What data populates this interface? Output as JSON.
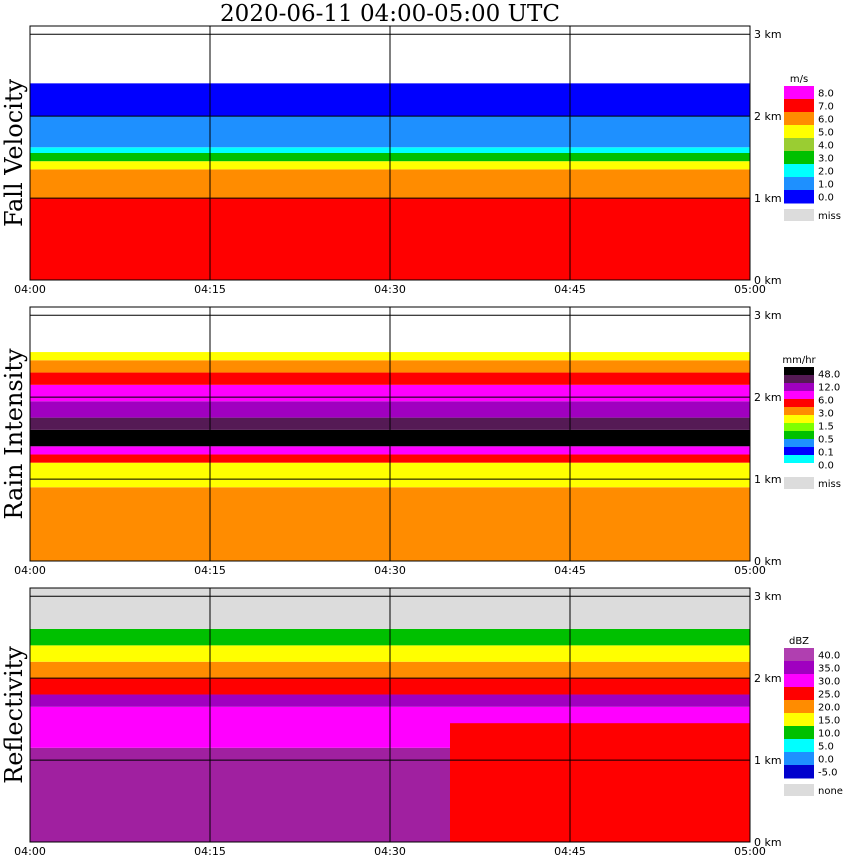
{
  "title": "2020-06-11   04:00-05:00 UTC",
  "chart_data": [
    {
      "type": "heatmap",
      "ylabel": "Fall Velocity",
      "x_ticks": [
        "04:00",
        "04:15",
        "04:30",
        "04:45",
        "05:00"
      ],
      "y_ticks": [
        "0 km",
        "1 km",
        "2 km",
        "3 km"
      ],
      "ylim": [
        0,
        3.1
      ],
      "colorbar": {
        "unit": "m/s",
        "labels": [
          "8.0",
          "7.0",
          "6.0",
          "5.0",
          "4.0",
          "3.0",
          "2.0",
          "1.0",
          "0.0"
        ],
        "colors": [
          "#ff00ff",
          "#ff0000",
          "#ff8c00",
          "#ffff00",
          "#9acd32",
          "#00c000",
          "#00ffff",
          "#1e90ff",
          "#0000ff"
        ],
        "missing_label": "miss",
        "missing_color": "#dcdcdc"
      },
      "bands": [
        {
          "from": 0.0,
          "to": 1.0,
          "color": "#ff0000"
        },
        {
          "from": 1.0,
          "to": 1.35,
          "color": "#ff8c00"
        },
        {
          "from": 1.35,
          "to": 1.45,
          "color": "#ffff00"
        },
        {
          "from": 1.45,
          "to": 1.55,
          "color": "#00c000"
        },
        {
          "from": 1.55,
          "to": 1.62,
          "color": "#00ffff"
        },
        {
          "from": 1.62,
          "to": 2.0,
          "color": "#1e90ff"
        },
        {
          "from": 2.0,
          "to": 2.4,
          "color": "#0000ff"
        }
      ]
    },
    {
      "type": "heatmap",
      "ylabel": "Rain Intensity",
      "x_ticks": [
        "04:00",
        "04:15",
        "04:30",
        "04:45",
        "05:00"
      ],
      "y_ticks": [
        "0 km",
        "1 km",
        "2 km",
        "3 km"
      ],
      "ylim": [
        0,
        3.1
      ],
      "colorbar": {
        "unit": "mm/hr",
        "labels": [
          "48.0",
          "12.0",
          "6.0",
          "3.0",
          "1.5",
          "0.5",
          "0.1",
          "0.0"
        ],
        "colors": [
          "#000000",
          "#551a55",
          "#a000c0",
          "#ff00ff",
          "#ff0000",
          "#ff8c00",
          "#ffff00",
          "#7fff00",
          "#00c000",
          "#1e90ff",
          "#0000ff",
          "#00ffff",
          "#ffffff"
        ],
        "missing_label": "miss",
        "missing_color": "#dcdcdc"
      },
      "bands": [
        {
          "from": 0.0,
          "to": 0.9,
          "color": "#ff8c00"
        },
        {
          "from": 0.9,
          "to": 1.2,
          "color": "#ffff00"
        },
        {
          "from": 1.2,
          "to": 1.3,
          "color": "#ff0000"
        },
        {
          "from": 1.3,
          "to": 1.4,
          "color": "#ff00ff"
        },
        {
          "from": 1.4,
          "to": 1.6,
          "color": "#000000"
        },
        {
          "from": 1.6,
          "to": 1.75,
          "color": "#551a55"
        },
        {
          "from": 1.75,
          "to": 1.95,
          "color": "#a000c0"
        },
        {
          "from": 1.95,
          "to": 2.15,
          "color": "#ff00ff"
        },
        {
          "from": 2.15,
          "to": 2.3,
          "color": "#ff0000"
        },
        {
          "from": 2.3,
          "to": 2.45,
          "color": "#ff8c00"
        },
        {
          "from": 2.45,
          "to": 2.55,
          "color": "#ffff00"
        }
      ]
    },
    {
      "type": "heatmap",
      "ylabel": "Reflectivity",
      "x_ticks": [
        "04:00",
        "04:15",
        "04:30",
        "04:45",
        "05:00"
      ],
      "y_ticks": [
        "0 km",
        "1 km",
        "2 km",
        "3 km"
      ],
      "ylim": [
        0,
        3.1
      ],
      "colorbar": {
        "unit": "dBZ",
        "labels": [
          "40.0",
          "35.0",
          "30.0",
          "25.0",
          "20.0",
          "15.0",
          "10.0",
          "5.0",
          "0.0",
          "-5.0"
        ],
        "colors": [
          "#b03fb0",
          "#a000c0",
          "#ff00ff",
          "#ff0000",
          "#ff8c00",
          "#ffff00",
          "#00c000",
          "#00ffff",
          "#1e90ff",
          "#0000cd"
        ],
        "missing_label": "none",
        "missing_color": "#dcdcdc"
      },
      "bands": [
        {
          "from": 0.0,
          "to": 1.15,
          "color": "#a020a0"
        },
        {
          "from": 1.15,
          "to": 1.65,
          "color": "#ff00ff"
        },
        {
          "from": 1.65,
          "to": 1.8,
          "color": "#a000c0"
        },
        {
          "from": 1.8,
          "to": 2.0,
          "color": "#ff0000"
        },
        {
          "from": 2.0,
          "to": 2.2,
          "color": "#ff8c00"
        },
        {
          "from": 2.2,
          "to": 2.4,
          "color": "#ffff00"
        },
        {
          "from": 2.4,
          "to": 2.6,
          "color": "#00c000"
        },
        {
          "from": 2.6,
          "to": 3.1,
          "color": "#dcdcdc"
        }
      ],
      "overlay": {
        "x_from": "04:35",
        "x_to": "05:00",
        "from": 0.0,
        "to": 1.45,
        "color": "#ff0000"
      }
    }
  ]
}
